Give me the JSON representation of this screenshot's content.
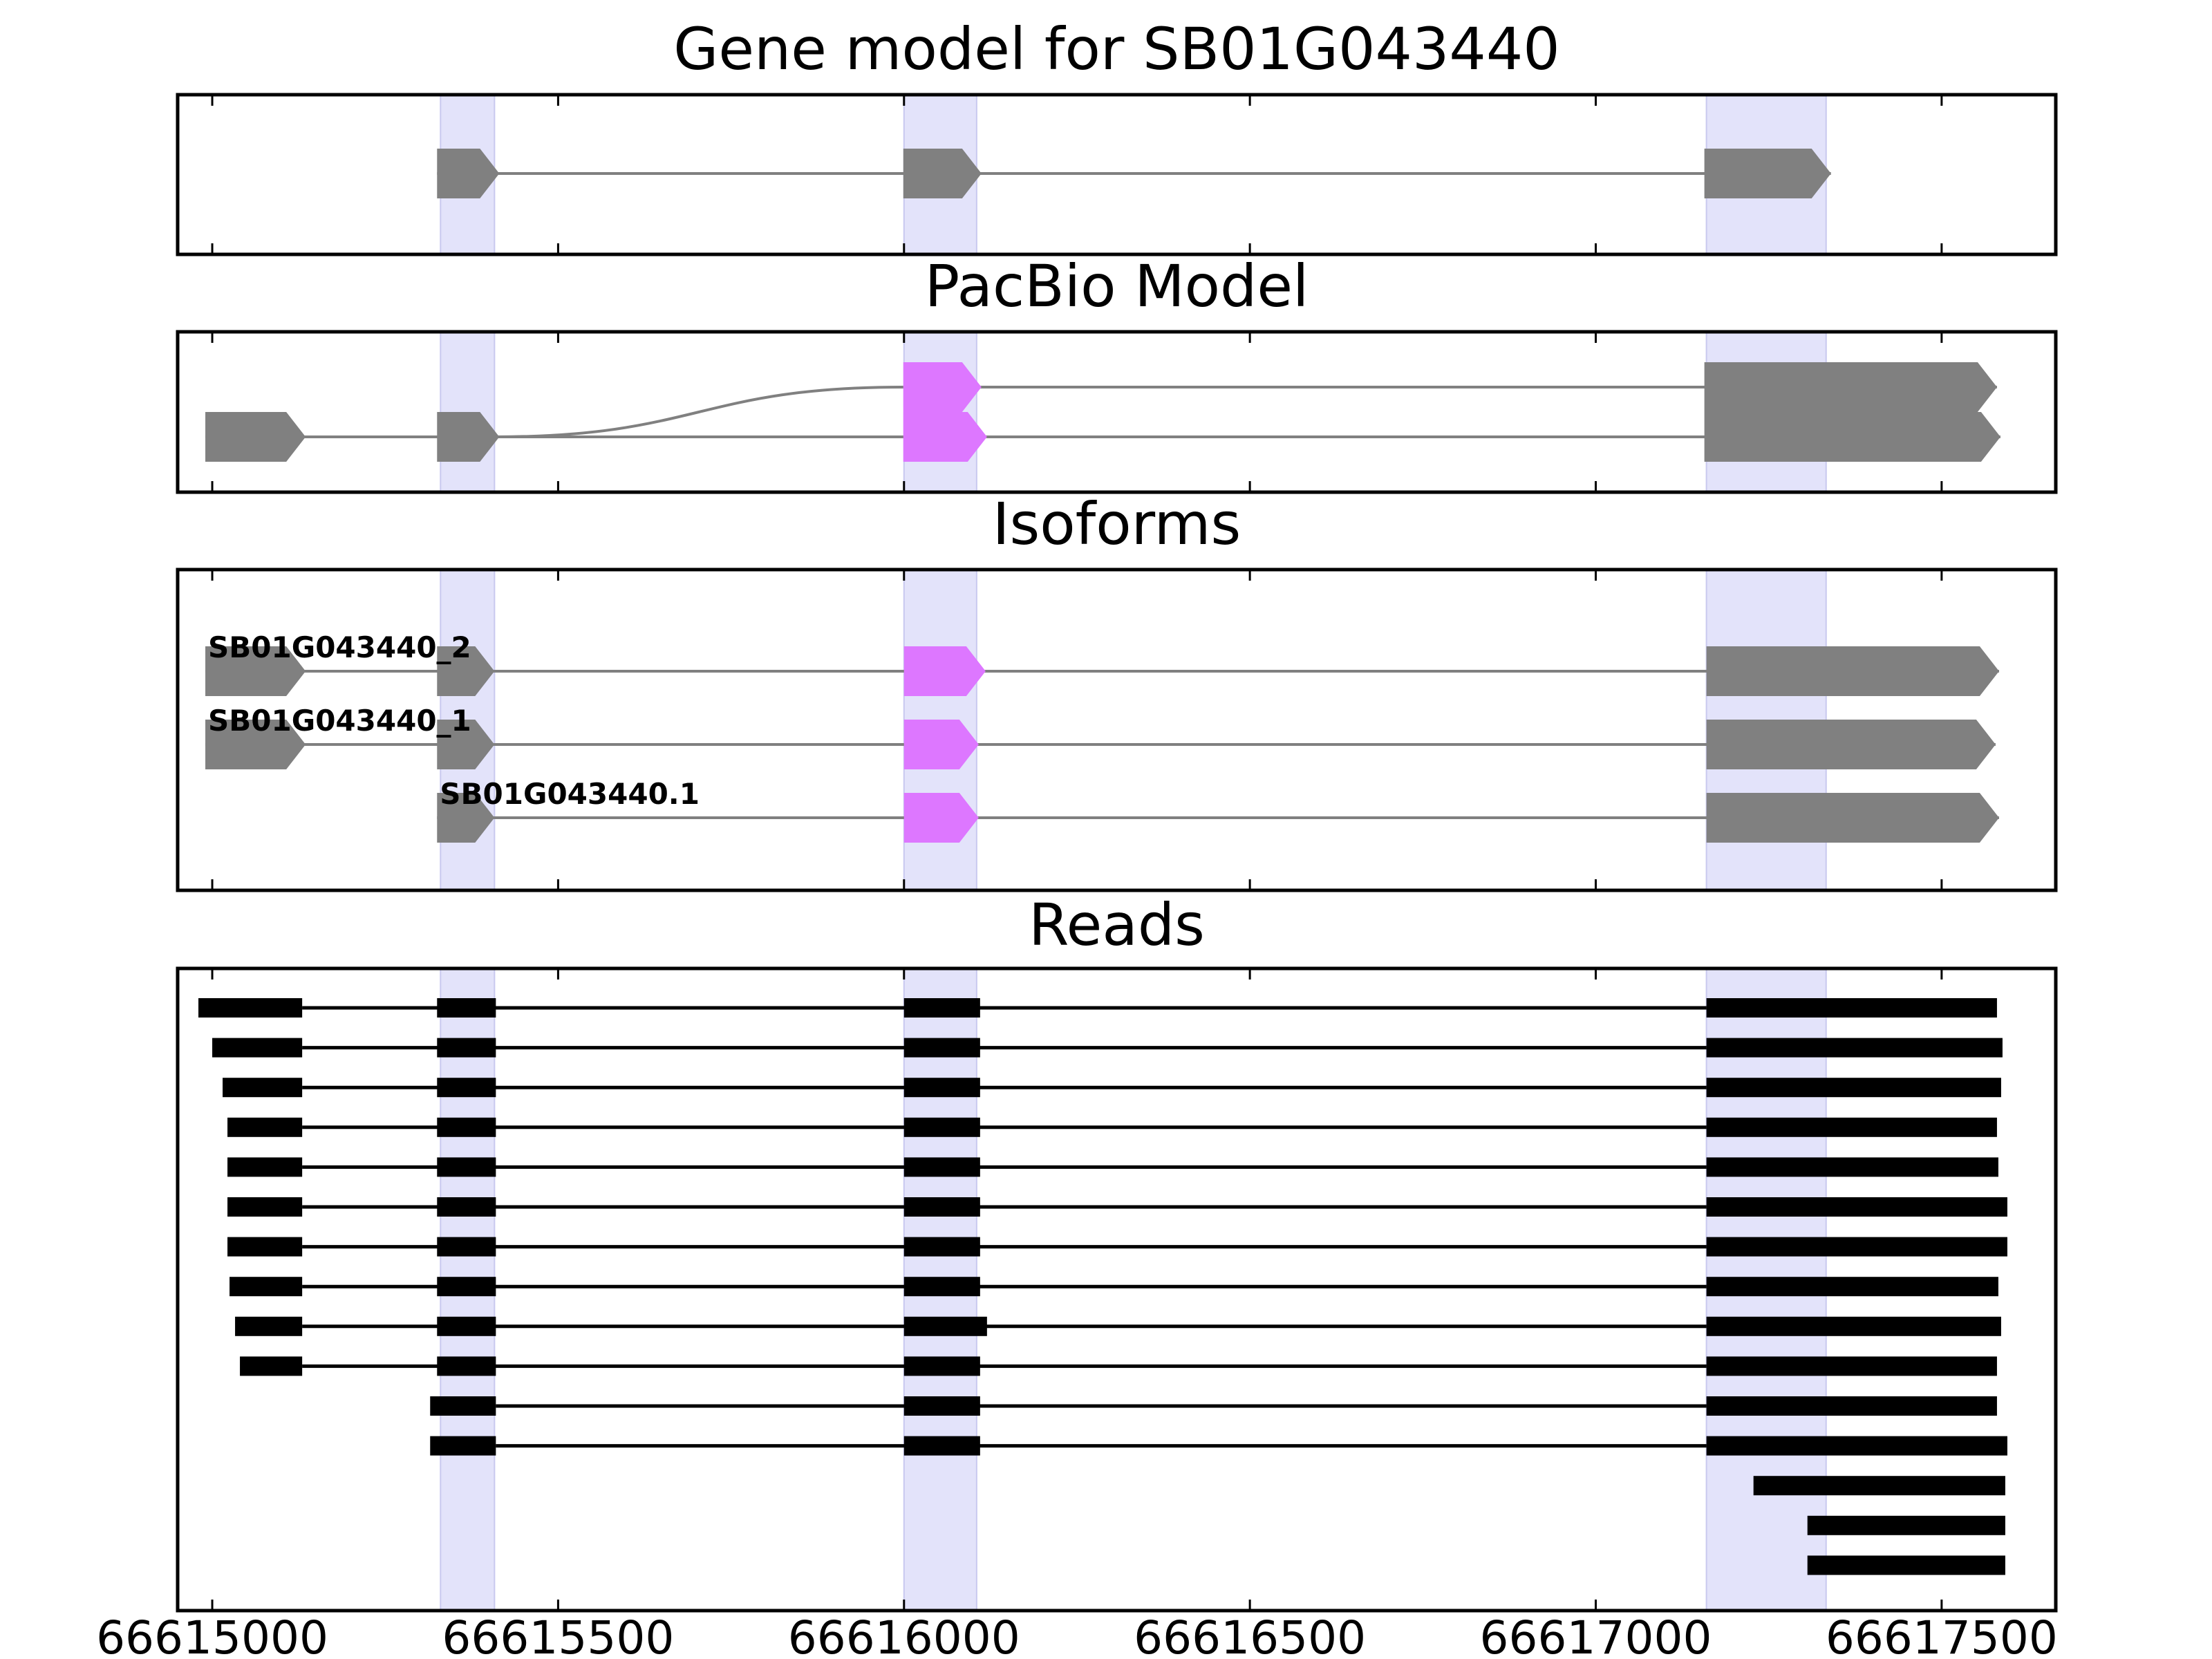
{
  "chart_data": {
    "type": "gene-track",
    "xlim": [
      66614950,
      66617665
    ],
    "xticks": [
      66615000,
      66615500,
      66616000,
      66616500,
      66617000,
      66617500
    ],
    "xtick_labels": [
      "66615000",
      "66615500",
      "66616000",
      "66616500",
      "66617000",
      "66617500"
    ],
    "colors": {
      "exon": "#808080",
      "intron": "#808080",
      "highlight_exon": "#dd77ff",
      "read": "#000000",
      "shade": "#e3e3fa",
      "frame": "#000000"
    },
    "shaded_regions": [
      [
        66615330,
        66615408
      ],
      [
        66616000,
        66616105
      ],
      [
        66617160,
        66617333
      ]
    ],
    "panels": [
      {
        "key": "gene_model",
        "title": "Gene model for SB01G043440",
        "tracks": [
          {
            "label": "",
            "exons": [
              [
                66615325,
                66615415,
                "normal"
              ],
              [
                66615999,
                66616112,
                "normal"
              ],
              [
                66617157,
                66617340,
                "normal"
              ]
            ]
          }
        ]
      },
      {
        "key": "pacbio",
        "title": "PacBio Model",
        "tracks": [
          {
            "label": "",
            "exons": [
              [
                66615999,
                66616112,
                "highlight"
              ],
              [
                66617157,
                66617580,
                "normal"
              ]
            ],
            "connector_from": [
              66615408,
              1
            ]
          },
          {
            "label": "",
            "exons": [
              [
                66614990,
                66615135,
                "normal"
              ],
              [
                66615325,
                66615415,
                "normal"
              ],
              [
                66615999,
                66616120,
                "highlight"
              ],
              [
                66617157,
                66617585,
                "normal"
              ]
            ]
          }
        ]
      },
      {
        "key": "isoforms",
        "title": "Isoforms",
        "tracks": [
          {
            "label": "SB01G043440_2",
            "exons": [
              [
                66614990,
                66615135,
                "normal"
              ],
              [
                66615325,
                66615408,
                "normal"
              ],
              [
                66616000,
                66616118,
                "highlight"
              ],
              [
                66617160,
                66617583,
                "normal"
              ]
            ]
          },
          {
            "label": "SB01G043440_1",
            "exons": [
              [
                66614990,
                66615135,
                "normal"
              ],
              [
                66615325,
                66615408,
                "normal"
              ],
              [
                66616000,
                66616108,
                "highlight"
              ],
              [
                66617160,
                66617578,
                "normal"
              ]
            ]
          },
          {
            "label": "SB01G043440.1",
            "exons": [
              [
                66615325,
                66615408,
                "normal"
              ],
              [
                66616000,
                66616108,
                "highlight"
              ],
              [
                66617160,
                66617583,
                "normal"
              ]
            ]
          }
        ]
      },
      {
        "key": "reads",
        "title": "Reads",
        "reads": [
          [
            [
              66614980,
              66615130
            ],
            [
              66615325,
              66615410
            ],
            [
              66616000,
              66616110
            ],
            [
              66617160,
              66617580
            ]
          ],
          [
            [
              66615000,
              66615130
            ],
            [
              66615325,
              66615410
            ],
            [
              66616000,
              66616110
            ],
            [
              66617160,
              66617588
            ]
          ],
          [
            [
              66615015,
              66615130
            ],
            [
              66615325,
              66615410
            ],
            [
              66616000,
              66616110
            ],
            [
              66617160,
              66617586
            ]
          ],
          [
            [
              66615022,
              66615130
            ],
            [
              66615325,
              66615410
            ],
            [
              66616000,
              66616110
            ],
            [
              66617160,
              66617580
            ]
          ],
          [
            [
              66615022,
              66615130
            ],
            [
              66615325,
              66615410
            ],
            [
              66616000,
              66616110
            ],
            [
              66617160,
              66617582
            ]
          ],
          [
            [
              66615022,
              66615130
            ],
            [
              66615325,
              66615410
            ],
            [
              66616000,
              66616110
            ],
            [
              66617160,
              66617595
            ]
          ],
          [
            [
              66615022,
              66615130
            ],
            [
              66615325,
              66615410
            ],
            [
              66616000,
              66616110
            ],
            [
              66617160,
              66617595
            ]
          ],
          [
            [
              66615025,
              66615130
            ],
            [
              66615325,
              66615410
            ],
            [
              66616000,
              66616110
            ],
            [
              66617160,
              66617582
            ]
          ],
          [
            [
              66615033,
              66615130
            ],
            [
              66615325,
              66615410
            ],
            [
              66616000,
              66616120
            ],
            [
              66617160,
              66617586
            ]
          ],
          [
            [
              66615040,
              66615130
            ],
            [
              66615325,
              66615410
            ],
            [
              66616000,
              66616110
            ],
            [
              66617160,
              66617580
            ]
          ],
          [
            [
              66615315,
              66615410
            ],
            [
              66616000,
              66616110
            ],
            [
              66617160,
              66617580
            ]
          ],
          [
            [
              66615315,
              66615410
            ],
            [
              66616000,
              66616110
            ],
            [
              66617160,
              66617595
            ]
          ],
          [
            [
              66617228,
              66617592
            ]
          ],
          [
            [
              66617306,
              66617592
            ]
          ],
          [
            [
              66617306,
              66617592
            ]
          ]
        ]
      }
    ]
  }
}
